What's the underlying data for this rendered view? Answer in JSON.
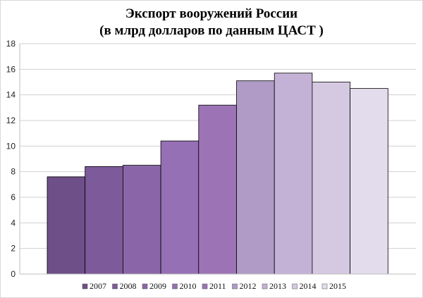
{
  "chart_data": {
    "type": "bar",
    "title_line1": "Экспорт вооружений России",
    "title_line2": "(в млрд долларов по данным ЦАСТ )",
    "xlabel": "",
    "ylabel": "",
    "categories": [
      "2007",
      "2008",
      "2009",
      "2010",
      "2011",
      "2012",
      "2013",
      "2014",
      "2015"
    ],
    "values": [
      7.6,
      8.4,
      8.5,
      10.4,
      13.2,
      15.1,
      15.7,
      15.0,
      14.5
    ],
    "colors": [
      "#6e4f88",
      "#7d5a99",
      "#8a66a8",
      "#9570b4",
      "#9c74b6",
      "#b09bc6",
      "#c4b2d6",
      "#d5c9e2",
      "#e3dcec"
    ],
    "ylim": [
      0,
      18
    ],
    "yticks": [
      "0",
      "2",
      "4",
      "6",
      "8",
      "10",
      "12",
      "14",
      "16",
      "18"
    ],
    "grid": true,
    "legend_position": "bottom"
  }
}
